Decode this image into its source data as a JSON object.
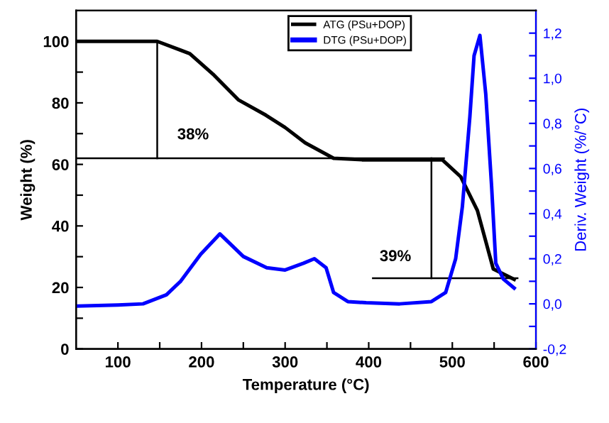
{
  "chart_data": {
    "type": "line",
    "xlabel": "Temperature (°C)",
    "ylabel": "Weight (%)",
    "y2label": "Deriv. Weight (%/°C)",
    "xlim": [
      50,
      600
    ],
    "xticks": [
      100,
      {
        "value": 150,
        "label": null
      },
      200,
      {
        "value": 250,
        "label": null
      },
      300,
      {
        "value": 350,
        "label": null
      },
      400,
      {
        "value": 450,
        "label": null
      },
      500,
      {
        "value": 550,
        "label": null
      },
      600
    ],
    "ylim": [
      0,
      110
    ],
    "yticks": [
      0,
      {
        "value": 10,
        "label": null
      },
      20,
      {
        "value": 30,
        "label": null
      },
      40,
      {
        "value": 50,
        "label": null
      },
      60,
      {
        "value": 70,
        "label": null
      },
      80,
      {
        "value": 90,
        "label": null
      },
      100
    ],
    "y2lim": [
      -0.2,
      1.3
    ],
    "y2ticks": [
      {
        "value": -0.2,
        "label": "-0,2"
      },
      {
        "value": -0.1,
        "label": null
      },
      {
        "value": 0.0,
        "label": "0,0"
      },
      {
        "value": 0.1,
        "label": null
      },
      {
        "value": 0.2,
        "label": "0,2"
      },
      {
        "value": 0.3,
        "label": null
      },
      {
        "value": 0.4,
        "label": "0,4"
      },
      {
        "value": 0.5,
        "label": null
      },
      {
        "value": 0.6,
        "label": "0,6"
      },
      {
        "value": 0.7,
        "label": null
      },
      {
        "value": 0.8,
        "label": "0,8"
      },
      {
        "value": 0.9,
        "label": null
      },
      {
        "value": 1.0,
        "label": "1,0"
      },
      {
        "value": 1.1,
        "label": null
      },
      {
        "value": 1.2,
        "label": "1,2"
      }
    ],
    "grid": false,
    "legend": "top right",
    "marker": "none",
    "line_style": "solid",
    "series": [
      {
        "name": "ATG (PSu+DOP)",
        "color": "#000000",
        "x": [
          50,
          100,
          147,
          186,
          215,
          244,
          277,
          300,
          324,
          358,
          392,
          450,
          488,
          510,
          530,
          549,
          574
        ],
        "values": [
          100,
          100,
          100,
          96,
          89,
          81,
          76,
          72,
          67,
          62,
          61.5,
          61.5,
          61.5,
          56,
          45,
          26,
          22.6
        ]
      },
      {
        "name": "DTG (PSu+DOP)",
        "color": "#0000ff",
        "axis": "y2",
        "x": [
          52,
          100,
          130,
          158,
          175,
          199,
          222,
          250,
          278,
          300,
          322,
          335,
          349,
          358,
          375,
          397,
          437,
          475,
          492,
          504,
          512,
          521,
          526,
          533,
          540,
          547,
          552,
          561,
          574
        ],
        "values": [
          -0.01,
          -0.005,
          0.0,
          0.04,
          0.1,
          0.22,
          0.31,
          0.21,
          0.16,
          0.15,
          0.18,
          0.2,
          0.16,
          0.05,
          0.01,
          0.005,
          0.0,
          0.01,
          0.05,
          0.2,
          0.43,
          0.83,
          1.1,
          1.19,
          0.93,
          0.52,
          0.18,
          0.11,
          0.07
        ]
      },
      {
        "color": "#000000",
        "x": [
          50,
          490
        ],
        "values": [
          62,
          62
        ]
      },
      {
        "color": "#000000",
        "x": [
          147,
          147
        ],
        "values": [
          100,
          62
        ]
      },
      {
        "color": "#000000",
        "x": [
          405,
          578
        ],
        "values": [
          23,
          23
        ]
      },
      {
        "color": "#000000",
        "x": [
          475,
          475
        ],
        "values": [
          62,
          23
        ]
      }
    ],
    "annotations": [
      "38%",
      "39%"
    ]
  }
}
